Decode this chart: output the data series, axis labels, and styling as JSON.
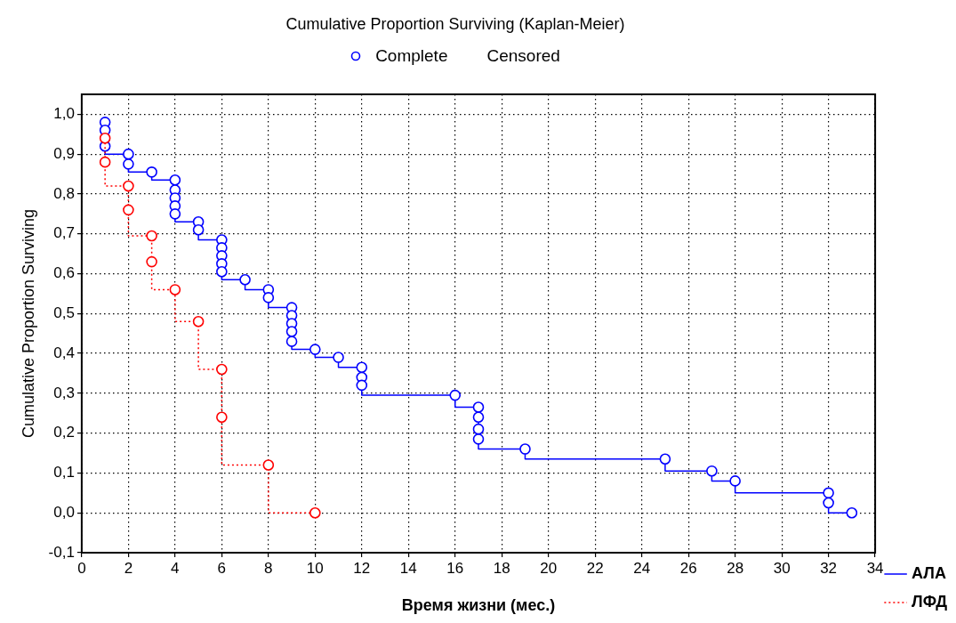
{
  "chart_data": {
    "type": "step",
    "title": "Cumulative Proportion Surviving (Kaplan-Meier)",
    "annotations": [
      "Complete",
      "Censored"
    ],
    "xlabel": "Время жизни (мес.)",
    "ylabel": "Cumulative Proportion Surviving",
    "xlim": [
      0,
      34
    ],
    "xticks": [
      0,
      2,
      4,
      6,
      8,
      10,
      12,
      14,
      16,
      18,
      20,
      22,
      24,
      26,
      28,
      30,
      32,
      34
    ],
    "ylim": [
      -0.1,
      1.05
    ],
    "yticks": [
      {
        "value": -0.1,
        "label": "-0,1"
      },
      {
        "value": 0,
        "label": "0,0"
      },
      {
        "value": 0.1,
        "label": "0,1"
      },
      {
        "value": 0.2,
        "label": "0,2"
      },
      {
        "value": 0.3,
        "label": "0,3"
      },
      {
        "value": 0.4,
        "label": "0,4"
      },
      {
        "value": 0.5,
        "label": "0,5"
      },
      {
        "value": 0.6,
        "label": "0,6"
      },
      {
        "value": 0.7,
        "label": "0,7"
      },
      {
        "value": 0.8,
        "label": "0,8"
      },
      {
        "value": 0.9,
        "label": "0,9"
      },
      {
        "value": 1.0,
        "label": "1,0"
      }
    ],
    "grid": true,
    "legend": "bottom right",
    "marker": "circle",
    "series": [
      {
        "name": "АЛА",
        "color": "#0000ff",
        "line_style": "solid",
        "x": [
          1,
          1,
          1,
          2,
          2,
          3,
          4,
          4,
          4,
          4,
          4,
          5,
          5,
          6,
          6,
          6,
          6,
          6,
          7,
          8,
          8,
          9,
          9,
          9,
          9,
          9,
          10,
          11,
          12,
          12,
          12,
          16,
          17,
          17,
          17,
          17,
          19,
          25,
          27,
          28,
          32,
          32,
          33
        ],
        "values": [
          0.98,
          0.96,
          0.92,
          0.9,
          0.875,
          0.855,
          0.835,
          0.81,
          0.79,
          0.77,
          0.75,
          0.73,
          0.71,
          0.685,
          0.665,
          0.645,
          0.625,
          0.605,
          0.585,
          0.56,
          0.54,
          0.515,
          0.495,
          0.475,
          0.455,
          0.43,
          0.41,
          0.39,
          0.365,
          0.34,
          0.32,
          0.295,
          0.265,
          0.24,
          0.21,
          0.185,
          0.16,
          0.135,
          0.105,
          0.08,
          0.05,
          0.025,
          0.0
        ]
      },
      {
        "name": "ЛФД",
        "color": "#ff0000",
        "line_style": "dotted",
        "x": [
          1,
          1,
          2,
          2,
          3,
          3,
          4,
          5,
          6,
          6,
          8,
          10
        ],
        "values": [
          0.94,
          0.88,
          0.82,
          0.76,
          0.695,
          0.63,
          0.56,
          0.48,
          0.36,
          0.24,
          0.12,
          0.0
        ]
      }
    ]
  }
}
